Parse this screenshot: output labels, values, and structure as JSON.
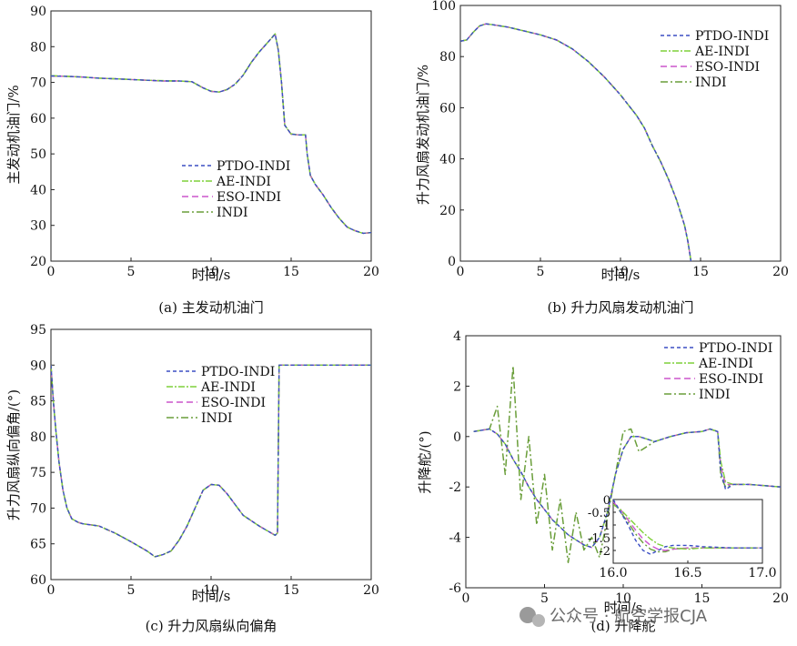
{
  "watermark": {
    "icon": "wechat-icon",
    "text": "公众号 · 航空学报CJA"
  },
  "legend_entries": [
    "PTDO-INDI",
    "AE-INDI",
    "ESO-INDI",
    "INDI"
  ],
  "series_colors": {
    "PTDO-INDI": "#3b4fc4",
    "AE-INDI": "#7fd03a",
    "ESO-INDI": "#cc55cc",
    "INDI": "#6a9e3a"
  },
  "chart_data": [
    {
      "id": "a",
      "type": "line",
      "caption": "(a) 主发动机油门",
      "xlabel": "时间/s",
      "ylabel": "主发动机油门/%",
      "xlim": [
        0,
        20
      ],
      "ylim": [
        20,
        90
      ],
      "xticks": [
        "0",
        "5",
        "10",
        "15",
        "20"
      ],
      "yticks": [
        "20",
        "30",
        "40",
        "50",
        "60",
        "70",
        "80",
        "90"
      ],
      "legend": "center",
      "x": [
        0,
        1,
        2,
        3,
        4,
        5,
        6,
        7,
        8,
        8.8,
        9.5,
        10,
        10.5,
        11,
        11.5,
        12,
        12.5,
        13,
        13.5,
        14,
        14.2,
        14.4,
        14.6,
        15,
        15.5,
        15.9,
        16,
        16.2,
        16.5,
        17,
        17.5,
        18,
        18.5,
        19,
        19.5,
        20
      ],
      "series": [
        {
          "name": "PTDO-INDI",
          "values": [
            71.8,
            71.7,
            71.5,
            71.2,
            71,
            70.8,
            70.6,
            70.4,
            70.4,
            70.2,
            68.5,
            67.5,
            67.3,
            68,
            69.5,
            72,
            75.5,
            78.5,
            81,
            83.5,
            79,
            70,
            58,
            55.5,
            55.3,
            55.3,
            50,
            44,
            41.5,
            38.5,
            35,
            32,
            29.5,
            28.5,
            27.8,
            28
          ]
        },
        {
          "name": "AE-INDI",
          "values": [
            71.9,
            71.7,
            71.5,
            71.2,
            71,
            70.8,
            70.6,
            70.5,
            70.4,
            70.2,
            68.4,
            67.6,
            67.3,
            68,
            69.4,
            72,
            75.6,
            78.5,
            81,
            83.6,
            79,
            70,
            58,
            55.6,
            55.3,
            55.3,
            50,
            44,
            41.6,
            38.5,
            35,
            32,
            29.6,
            28.4,
            27.8,
            28
          ]
        },
        {
          "name": "ESO-INDI",
          "values": [
            71.8,
            71.7,
            71.5,
            71.2,
            71,
            70.8,
            70.6,
            70.4,
            70.4,
            70.2,
            68.5,
            67.5,
            67.3,
            68,
            69.5,
            72,
            75.5,
            78.5,
            81,
            83.5,
            79,
            70,
            58,
            55.5,
            55.3,
            55.3,
            50,
            44,
            41.5,
            38.5,
            35,
            32,
            29.5,
            28.5,
            27.8,
            28
          ]
        },
        {
          "name": "INDI",
          "values": [
            71.8,
            71.7,
            71.5,
            71.2,
            71,
            70.8,
            70.6,
            70.4,
            70.4,
            70.2,
            68.5,
            67.5,
            67.3,
            68,
            69.5,
            72,
            75.5,
            78.5,
            81,
            83.5,
            79,
            70,
            58,
            55.5,
            55.3,
            55.3,
            50,
            44,
            41.5,
            38.5,
            35,
            32,
            29.5,
            28.5,
            27.8,
            28
          ]
        }
      ]
    },
    {
      "id": "b",
      "type": "line",
      "caption": "(b) 升力风扇发动机油门",
      "xlabel": "时间/s",
      "ylabel": "升力风扇发动机油门/%",
      "xlim": [
        0,
        20
      ],
      "ylim": [
        0,
        100
      ],
      "xticks": [
        "0",
        "5",
        "10",
        "15",
        "20"
      ],
      "yticks": [
        "0",
        "20",
        "40",
        "60",
        "80",
        "100"
      ],
      "legend": "top-right",
      "x": [
        0,
        0.4,
        0.8,
        1.2,
        1.6,
        2,
        3,
        4,
        5,
        6,
        7,
        8,
        9,
        10,
        11,
        11.5,
        12,
        12.5,
        13,
        13.5,
        14,
        14.2,
        14.35,
        14.4
      ],
      "series": [
        {
          "name": "PTDO-INDI",
          "values": [
            86,
            86.5,
            89.5,
            92,
            92.8,
            92.5,
            91.5,
            90,
            88.5,
            86.5,
            83,
            78,
            72,
            65,
            57,
            52,
            45,
            39,
            32,
            24,
            14,
            8,
            2,
            0
          ]
        },
        {
          "name": "AE-INDI",
          "values": [
            86,
            86.5,
            89.5,
            92,
            92.8,
            92.5,
            91.5,
            90,
            88.5,
            86.5,
            83,
            78,
            72,
            65,
            57,
            52,
            45,
            39,
            32,
            24,
            14,
            8,
            2,
            0
          ]
        },
        {
          "name": "ESO-INDI",
          "values": [
            86,
            86.5,
            89.5,
            92,
            92.8,
            92.5,
            91.5,
            90,
            88.5,
            86.5,
            83,
            78,
            72,
            65,
            57,
            52,
            45,
            39,
            32,
            24,
            14,
            8,
            2,
            0
          ]
        },
        {
          "name": "INDI",
          "values": [
            86,
            86.5,
            89.5,
            92,
            92.8,
            92.5,
            91.5,
            90,
            88.5,
            86.5,
            83,
            78,
            72,
            65,
            57,
            52,
            45,
            39,
            32,
            24,
            14,
            8,
            2,
            0
          ]
        }
      ]
    },
    {
      "id": "c",
      "type": "line",
      "caption": "(c) 升力风扇纵向偏角",
      "xlabel": "时间/s",
      "ylabel": "升力风扇纵向偏角/(°)",
      "xlim": [
        0,
        20
      ],
      "ylim": [
        60,
        95
      ],
      "xticks": [
        "0",
        "5",
        "10",
        "15",
        "20"
      ],
      "yticks": [
        "60",
        "65",
        "70",
        "75",
        "80",
        "85",
        "90",
        "95"
      ],
      "legend": "top-center",
      "x": [
        0,
        0.15,
        0.3,
        0.5,
        0.75,
        1,
        1.3,
        1.7,
        2,
        3,
        4,
        5,
        6,
        6.5,
        7,
        7.5,
        8,
        8.5,
        9,
        9.5,
        10,
        10.5,
        11,
        11.5,
        12,
        13,
        14,
        14.15,
        14.25,
        15,
        16,
        18,
        20
      ],
      "series": [
        {
          "name": "PTDO-INDI",
          "values": [
            90,
            85,
            81,
            76.5,
            72.5,
            70,
            68.5,
            68,
            67.8,
            67.5,
            66.5,
            65.3,
            64,
            63.2,
            63.5,
            64,
            65.5,
            67.5,
            70,
            72.5,
            73.3,
            73.2,
            72,
            70.5,
            69,
            67.5,
            66.2,
            66.5,
            90,
            90,
            90,
            90,
            90
          ]
        },
        {
          "name": "AE-INDI",
          "values": [
            90,
            85,
            81,
            76.5,
            72.5,
            70,
            68.5,
            68,
            67.8,
            67.5,
            66.5,
            65.3,
            64,
            63.2,
            63.5,
            64,
            65.5,
            67.5,
            70,
            72.5,
            73.3,
            73.2,
            72,
            70.5,
            69,
            67.5,
            66.2,
            66.5,
            90,
            90,
            90,
            90,
            90
          ]
        },
        {
          "name": "ESO-INDI",
          "values": [
            90,
            85,
            81,
            76.5,
            72.5,
            70,
            68.5,
            68,
            67.8,
            67.5,
            66.5,
            65.3,
            64,
            63.2,
            63.5,
            64,
            65.5,
            67.5,
            70,
            72.5,
            73.3,
            73.2,
            72,
            70.5,
            69,
            67.5,
            66.2,
            66.5,
            90,
            90,
            90,
            90,
            90
          ]
        },
        {
          "name": "INDI",
          "values": [
            90,
            85,
            81,
            76.5,
            72.5,
            70,
            68.5,
            68,
            67.8,
            67.5,
            66.5,
            65.3,
            64,
            63.2,
            63.5,
            64,
            65.5,
            67.5,
            70,
            72.5,
            73.3,
            73.2,
            72,
            70.5,
            69,
            67.5,
            66.2,
            66.5,
            90,
            90,
            90,
            90,
            90
          ]
        }
      ]
    },
    {
      "id": "d",
      "type": "line",
      "caption": "(d) 升降舵",
      "xlabel": "时间/s",
      "ylabel": "升降舵/(°)",
      "xlim": [
        0,
        20
      ],
      "ylim": [
        -6,
        4
      ],
      "xticks": [
        "0",
        "5",
        "10",
        "15",
        "20"
      ],
      "yticks": [
        "-6",
        "-4",
        "-2",
        "0",
        "2",
        "4"
      ],
      "legend": "top-right",
      "x": [
        0.5,
        1,
        1.5,
        2,
        2.5,
        3,
        3.5,
        4,
        4.5,
        5,
        5.5,
        6,
        6.5,
        7,
        7.5,
        8,
        8.5,
        9,
        9.5,
        10,
        10.5,
        11,
        12,
        13,
        14,
        15,
        15.5,
        16,
        16.2,
        16.5,
        17,
        18,
        19,
        20
      ],
      "series": [
        {
          "name": "PTDO-INDI",
          "values": [
            0.2,
            0.25,
            0.3,
            0.1,
            -0.3,
            -0.9,
            -1.4,
            -2,
            -2.5,
            -2.9,
            -3.3,
            -3.6,
            -3.9,
            -4.1,
            -4.3,
            -4.4,
            -4,
            -3,
            -1.5,
            -0.5,
            0,
            0,
            -0.2,
            0,
            0.15,
            0.2,
            0.3,
            0.2,
            -1.4,
            -2.1,
            -1.9,
            -1.9,
            -1.95,
            -2
          ]
        },
        {
          "name": "AE-INDI",
          "values": [
            0.2,
            0.25,
            0.3,
            0.1,
            -0.3,
            -0.9,
            -1.4,
            -2,
            -2.5,
            -2.9,
            -3.3,
            -3.6,
            -3.9,
            -4.1,
            -4.3,
            -4.4,
            -4,
            -3,
            -1.5,
            -0.5,
            0,
            0,
            -0.2,
            0,
            0.15,
            0.2,
            0.3,
            0.2,
            -1,
            -1.8,
            -1.9,
            -1.9,
            -1.95,
            -2
          ]
        },
        {
          "name": "ESO-INDI",
          "values": [
            0.2,
            0.25,
            0.3,
            0.1,
            -0.3,
            -0.9,
            -1.4,
            -2,
            -2.5,
            -2.9,
            -3.3,
            -3.6,
            -3.9,
            -4.1,
            -4.3,
            -4.4,
            -4,
            -3,
            -1.5,
            -0.5,
            0,
            0,
            -0.2,
            0,
            0.15,
            0.2,
            0.3,
            0.2,
            -1.2,
            -1.9,
            -1.9,
            -1.9,
            -1.95,
            -2
          ]
        },
        {
          "name": "INDI",
          "values": [
            0.2,
            0.25,
            0.3,
            1.2,
            -1.5,
            2.8,
            -2.5,
            0,
            -3.5,
            -1.5,
            -4.5,
            -2.5,
            -5,
            -3,
            -4.5,
            -4,
            -4.8,
            -3.2,
            -1.5,
            0.2,
            0.3,
            -0.6,
            -0.2,
            0,
            0.15,
            0.2,
            0.3,
            0.2,
            -1.6,
            -2,
            -1.9,
            -1.9,
            -1.95,
            -2
          ]
        }
      ],
      "inset": {
        "xlim": [
          16.0,
          17.0
        ],
        "ylim": [
          -2.5,
          0
        ],
        "xticks": [
          "16.0",
          "16.5",
          "17.0"
        ],
        "yticks": [
          "-2",
          "-1.5",
          "-1",
          "-0.5",
          "0"
        ],
        "x": [
          16,
          16.05,
          16.1,
          16.15,
          16.2,
          16.25,
          16.3,
          16.35,
          16.4,
          16.5,
          16.6,
          16.8,
          17
        ],
        "series": [
          {
            "name": "PTDO-INDI",
            "values": [
              0,
              -0.5,
              -1,
              -1.6,
              -2,
              -2.15,
              -2,
              -1.85,
              -1.8,
              -1.8,
              -1.85,
              -1.9,
              -1.9
            ]
          },
          {
            "name": "AE-INDI",
            "values": [
              -0.2,
              -0.4,
              -0.7,
              -1,
              -1.3,
              -1.55,
              -1.75,
              -1.85,
              -1.9,
              -1.95,
              -1.9,
              -1.9,
              -1.9
            ]
          },
          {
            "name": "ESO-INDI",
            "values": [
              -0.1,
              -0.4,
              -0.8,
              -1.2,
              -1.55,
              -1.8,
              -1.95,
              -2,
              -1.95,
              -1.9,
              -1.9,
              -1.9,
              -1.9
            ]
          },
          {
            "name": "INDI",
            "values": [
              -0.1,
              -0.5,
              -0.9,
              -1.35,
              -1.7,
              -1.95,
              -2.05,
              -2.05,
              -1.95,
              -1.9,
              -1.9,
              -1.9,
              -1.9
            ]
          }
        ]
      }
    }
  ]
}
